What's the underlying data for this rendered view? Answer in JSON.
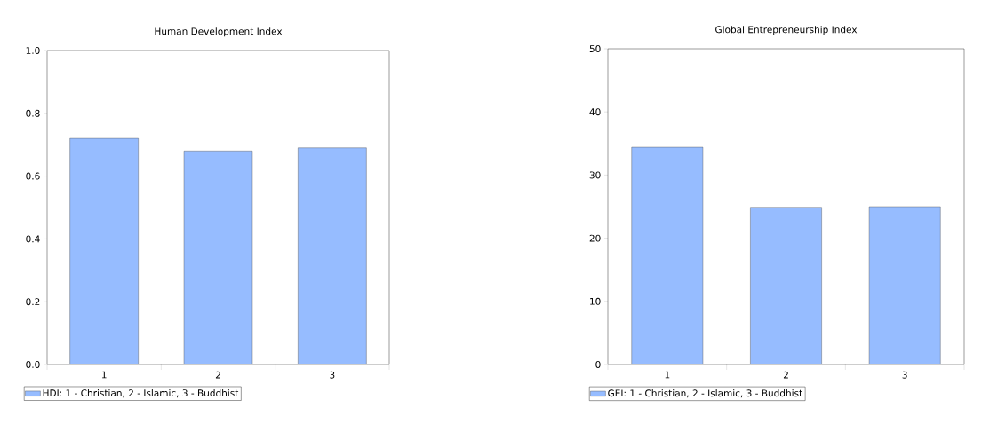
{
  "chart_data": [
    {
      "type": "bar",
      "title": "Human Development Index",
      "categories": [
        "1",
        "2",
        "3"
      ],
      "series": [
        {
          "name": "HDI: 1 - Christian, 2 - Islamic, 3 - Buddhist",
          "color": "#96bcff",
          "values": [
            0.72,
            0.68,
            0.69
          ]
        }
      ],
      "ylim": [
        0,
        1
      ],
      "yticks": [
        {
          "value": 0,
          "label": "0.0"
        },
        0.2,
        0.4,
        0.6,
        0.8,
        {
          "value": 1,
          "label": "1.0"
        }
      ],
      "legend": "bottom"
    },
    {
      "type": "bar",
      "title": "Global Entrepreneurship Index",
      "categories": [
        "1",
        "2",
        "3"
      ],
      "series": [
        {
          "name": "GEI: 1 - Christian, 2 - Islamic, 3 - Buddhist",
          "color": "#96bcff",
          "values": [
            34.4,
            24.9,
            25.0
          ]
        }
      ],
      "ylim": [
        0,
        50
      ],
      "yticks": [
        0,
        10,
        20,
        30,
        40,
        50
      ],
      "legend": "bottom"
    }
  ]
}
